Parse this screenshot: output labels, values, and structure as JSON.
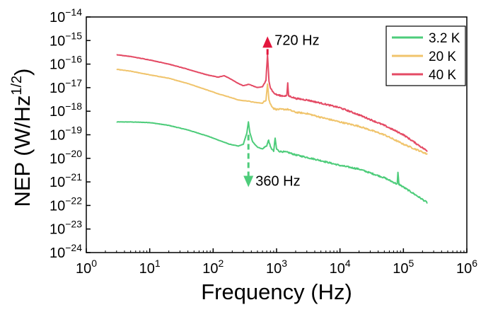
{
  "chart_data": {
    "type": "line",
    "xlabel": "Frequency (Hz)",
    "ylabel": "NEP (W/Hz^1/2)",
    "x_scale": "log",
    "y_scale": "log",
    "xlim": [
      1,
      1000000
    ],
    "ylim": [
      1e-24,
      1e-14
    ],
    "x_ticks": [
      1,
      10,
      100,
      1000,
      10000,
      100000,
      1000000
    ],
    "x_tick_labels": [
      {
        "base": "10",
        "exp": "0"
      },
      {
        "base": "10",
        "exp": "1"
      },
      {
        "base": "10",
        "exp": "2"
      },
      {
        "base": "10",
        "exp": "3"
      },
      {
        "base": "10",
        "exp": "4"
      },
      {
        "base": "10",
        "exp": "5"
      },
      {
        "base": "10",
        "exp": "6"
      }
    ],
    "y_ticks": [
      1e-24,
      1e-23,
      1e-22,
      1e-21,
      1e-20,
      1e-19,
      1e-18,
      1e-17,
      1e-16,
      1e-15,
      1e-14
    ],
    "y_tick_labels": [
      {
        "base": "10",
        "exp": "−24"
      },
      {
        "base": "10",
        "exp": "−23"
      },
      {
        "base": "10",
        "exp": "−22"
      },
      {
        "base": "10",
        "exp": "−21"
      },
      {
        "base": "10",
        "exp": "−20"
      },
      {
        "base": "10",
        "exp": "−19"
      },
      {
        "base": "10",
        "exp": "−18"
      },
      {
        "base": "10",
        "exp": "−17"
      },
      {
        "base": "10",
        "exp": "−16"
      },
      {
        "base": "10",
        "exp": "−15"
      },
      {
        "base": "10",
        "exp": "−14"
      }
    ],
    "grid": false,
    "legend_position": "top-right",
    "series": [
      {
        "name": "3.2 K",
        "color": "#4dcc7a",
        "x": [
          3,
          5,
          10,
          20,
          40,
          80,
          120,
          180,
          250,
          300,
          340,
          360,
          380,
          420,
          500,
          600,
          700,
          750,
          800,
          900,
          950,
          1000,
          1100,
          1500,
          2000,
          3000,
          5000,
          10000,
          20000,
          50000,
          80000,
          82000,
          85000,
          100000,
          150000,
          240000
        ],
        "y": [
          3.5e-19,
          3.5e-19,
          3.3e-19,
          2.5e-19,
          1.6e-19,
          9e-20,
          6e-20,
          4e-20,
          3.3e-20,
          4e-20,
          1.2e-19,
          3.5e-19,
          1.2e-19,
          5e-20,
          3e-20,
          2.5e-20,
          3.5e-20,
          6e-20,
          3e-20,
          2e-20,
          7e-20,
          2.5e-20,
          2e-20,
          1.8e-20,
          1.4e-20,
          1.1e-20,
          8e-21,
          5e-21,
          3.5e-21,
          1.5e-21,
          8e-22,
          2.5e-21,
          8e-22,
          6e-22,
          3e-22,
          1.3e-22
        ]
      },
      {
        "name": "20 K",
        "color": "#f0c46c",
        "x": [
          3,
          5,
          10,
          20,
          40,
          80,
          120,
          180,
          250,
          300,
          360,
          400,
          500,
          600,
          680,
          720,
          760,
          800,
          900,
          1000,
          1500,
          2000,
          3000,
          5000,
          10000,
          20000,
          50000,
          100000,
          240000
        ],
        "y": [
          6e-17,
          5e-17,
          3.5e-17,
          2.5e-17,
          1.5e-17,
          8e-18,
          5.5e-18,
          4e-18,
          3e-18,
          2.8e-18,
          2.7e-18,
          2.5e-18,
          2.3e-18,
          2.2e-18,
          3e-18,
          1.5e-17,
          3e-18,
          2e-18,
          1.3e-18,
          1.2e-18,
          1.2e-18,
          9e-19,
          8e-19,
          5.5e-19,
          3.5e-19,
          2.3e-19,
          1e-19,
          4e-20,
          1.5e-20
        ]
      },
      {
        "name": "40 K",
        "color": "#e44a64",
        "x": [
          3,
          5,
          10,
          20,
          40,
          80,
          120,
          150,
          180,
          250,
          300,
          360,
          420,
          500,
          600,
          680,
          720,
          760,
          800,
          900,
          1000,
          1200,
          1450,
          1500,
          1550,
          2000,
          3000,
          5000,
          10000,
          20000,
          50000,
          100000,
          240000
        ],
        "y": [
          2.5e-16,
          2.1e-16,
          1.5e-16,
          1e-16,
          6e-17,
          3.5e-17,
          2.8e-17,
          3.2e-17,
          2.5e-17,
          1.5e-17,
          1.2e-17,
          1.4e-17,
          1.2e-17,
          1e-17,
          1.1e-17,
          2e-17,
          2.5e-16,
          2e-17,
          1e-17,
          6e-18,
          5e-18,
          4.5e-18,
          4.5e-18,
          1.5e-17,
          4.5e-18,
          3.5e-18,
          3e-18,
          2.2e-18,
          1.4e-18,
          7e-19,
          2.5e-19,
          1e-19,
          2e-20
        ]
      }
    ],
    "annotations": [
      {
        "text": "720 Hz",
        "color": "#e3163d",
        "direction": "up",
        "x": 720,
        "y_from": 2.5e-16,
        "y_to": 1.5e-15
      },
      {
        "text": "360 Hz",
        "color": "#4dcc7a",
        "direction": "down",
        "x": 360,
        "y_from": 1e-19,
        "y_to": 6e-22
      }
    ]
  }
}
